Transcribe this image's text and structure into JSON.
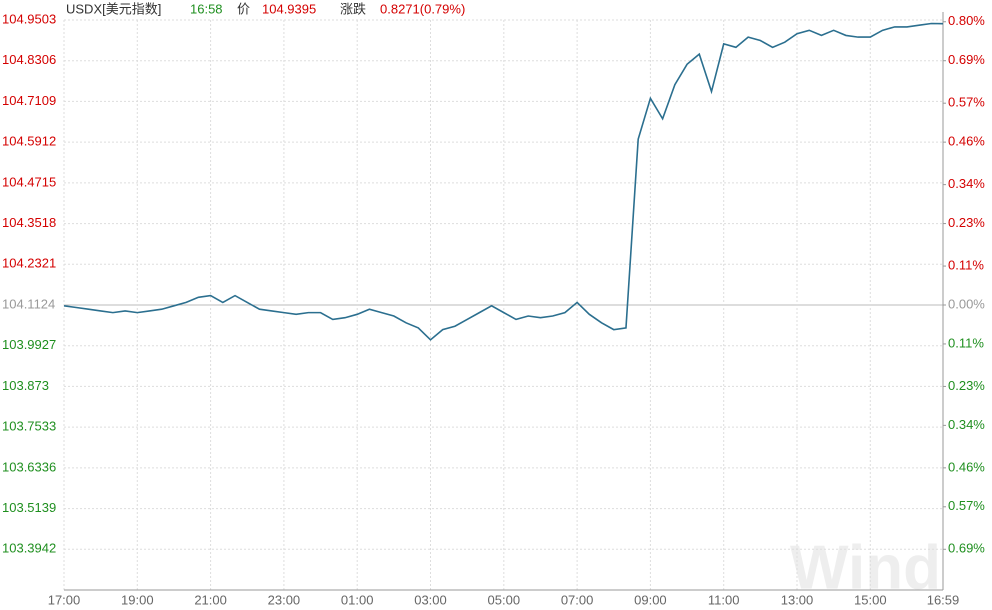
{
  "chart_data": {
    "type": "line",
    "title": "USDX[美元指数]",
    "time": "16:58",
    "price_label": "价",
    "price": 104.9395,
    "change_label": "涨跌",
    "change": "0.8271(0.79%)",
    "watermark": "Wind",
    "up_color": "#d40000",
    "down_color": "#1f8f1f",
    "grid": true,
    "x": [
      "17:00",
      "17:20",
      "17:40",
      "18:00",
      "18:20",
      "18:40",
      "19:00",
      "19:20",
      "19:40",
      "20:00",
      "20:20",
      "20:40",
      "21:00",
      "21:20",
      "21:40",
      "22:00",
      "22:20",
      "22:40",
      "23:00",
      "23:20",
      "23:40",
      "00:00",
      "00:20",
      "00:40",
      "01:00",
      "01:20",
      "01:40",
      "02:00",
      "02:20",
      "02:40",
      "03:00",
      "03:20",
      "03:40",
      "04:00",
      "04:20",
      "04:40",
      "05:00",
      "05:20",
      "05:40",
      "06:00",
      "06:20",
      "06:40",
      "07:00",
      "07:20",
      "07:40",
      "08:00",
      "08:20",
      "08:40",
      "09:00",
      "09:20",
      "09:40",
      "10:00",
      "10:20",
      "10:40",
      "11:00",
      "11:20",
      "11:40",
      "12:00",
      "12:20",
      "12:40",
      "13:00",
      "13:20",
      "13:40",
      "14:00",
      "14:20",
      "14:40",
      "15:00",
      "15:20",
      "15:40",
      "16:00",
      "16:20",
      "16:40",
      "16:59"
    ],
    "series": [
      {
        "name": "USDX",
        "color": "#2b6f8f",
        "values": [
          104.11,
          104.105,
          104.1,
          104.095,
          104.09,
          104.095,
          104.09,
          104.095,
          104.1,
          104.11,
          104.12,
          104.135,
          104.14,
          104.12,
          104.14,
          104.12,
          104.1,
          104.095,
          104.09,
          104.085,
          104.09,
          104.09,
          104.07,
          104.075,
          104.085,
          104.1,
          104.09,
          104.08,
          104.06,
          104.045,
          104.01,
          104.04,
          104.05,
          104.07,
          104.09,
          104.11,
          104.09,
          104.07,
          104.08,
          104.075,
          104.08,
          104.09,
          104.12,
          104.085,
          104.06,
          104.04,
          104.045,
          104.6,
          104.72,
          104.66,
          104.76,
          104.82,
          104.85,
          104.74,
          104.88,
          104.87,
          104.9,
          104.89,
          104.87,
          104.885,
          104.91,
          104.92,
          104.905,
          104.92,
          104.905,
          104.9,
          104.9,
          104.92,
          104.93,
          104.93,
          104.935,
          104.94,
          104.9395
        ]
      }
    ],
    "xticks": [
      "17:00",
      "19:00",
      "21:00",
      "23:00",
      "01:00",
      "03:00",
      "05:00",
      "07:00",
      "09:00",
      "11:00",
      "13:00",
      "15:00",
      "16:59"
    ],
    "ylim": [
      103.2745,
      104.9503
    ],
    "yticks": [
      104.9503,
      104.8306,
      104.7109,
      104.5912,
      104.4715,
      104.3518,
      104.2321,
      104.1124,
      103.9927,
      103.873,
      103.7533,
      103.6336,
      103.5139,
      103.3942
    ],
    "y2lim": [
      -0.805,
      0.805
    ],
    "y2ticks": [
      {
        "value": 0.8,
        "label": "0.80%"
      },
      {
        "value": 0.69,
        "label": "0.69%"
      },
      {
        "value": 0.57,
        "label": "0.57%"
      },
      {
        "value": 0.46,
        "label": "0.46%"
      },
      {
        "value": 0.34,
        "label": "0.34%"
      },
      {
        "value": 0.23,
        "label": "0.23%"
      },
      {
        "value": 0.11,
        "label": "0.11%"
      },
      {
        "value": 0,
        "label": "0.00%"
      },
      {
        "value": -0.11,
        "label": "0.11%"
      },
      {
        "value": -0.23,
        "label": "0.23%"
      },
      {
        "value": -0.34,
        "label": "0.34%"
      },
      {
        "value": -0.46,
        "label": "0.46%"
      },
      {
        "value": -0.57,
        "label": "0.57%"
      },
      {
        "value": -0.69,
        "label": "0.69%"
      }
    ]
  }
}
